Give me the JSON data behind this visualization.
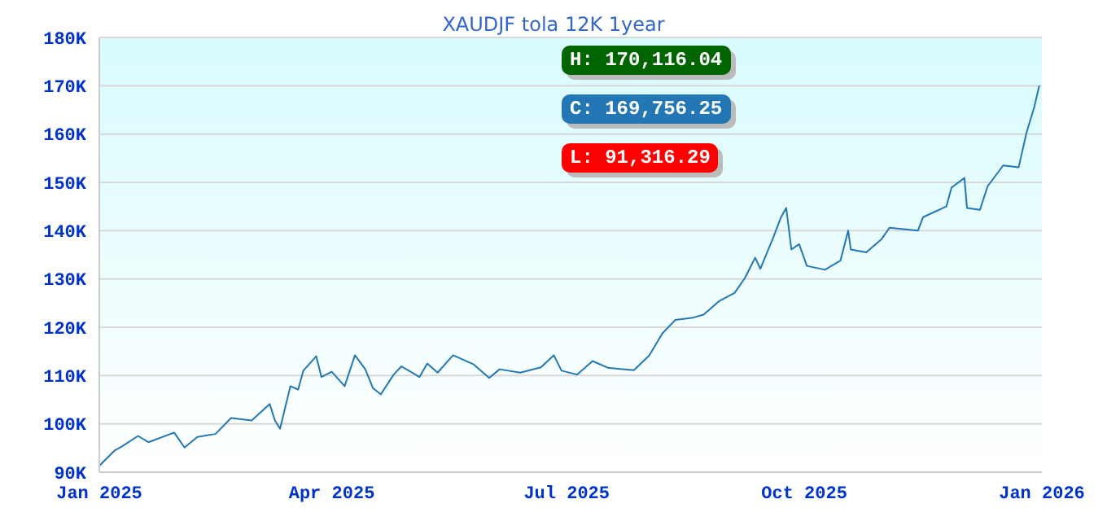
{
  "chart_data": {
    "type": "line",
    "title": "XAUDJF tola 12K 1year",
    "x": [
      "2025-01-01",
      "2025-01-07",
      "2025-01-10",
      "2025-01-16",
      "2025-01-20",
      "2025-01-30",
      "2025-02-03",
      "2025-02-08",
      "2025-02-15",
      "2025-02-21",
      "2025-03-01",
      "2025-03-08",
      "2025-03-10",
      "2025-03-12",
      "2025-03-16",
      "2025-03-19",
      "2025-03-21",
      "2025-03-26",
      "2025-03-28",
      "2025-04-01",
      "2025-04-06",
      "2025-04-10",
      "2025-04-14",
      "2025-04-17",
      "2025-04-20",
      "2025-04-25",
      "2025-04-28",
      "2025-05-05",
      "2025-05-08",
      "2025-05-12",
      "2025-05-18",
      "2025-05-26",
      "2025-06-01",
      "2025-06-05",
      "2025-06-13",
      "2025-06-21",
      "2025-06-26",
      "2025-06-29",
      "2025-07-05",
      "2025-07-11",
      "2025-07-17",
      "2025-07-27",
      "2025-08-02",
      "2025-08-07",
      "2025-08-12",
      "2025-08-19",
      "2025-08-23",
      "2025-08-29",
      "2025-09-04",
      "2025-09-08",
      "2025-09-12",
      "2025-09-14",
      "2025-09-19",
      "2025-09-22",
      "2025-09-24",
      "2025-09-26",
      "2025-09-29",
      "2025-10-02",
      "2025-10-09",
      "2025-10-15",
      "2025-10-18",
      "2025-10-19",
      "2025-10-25",
      "2025-10-31",
      "2025-11-03",
      "2025-11-14",
      "2025-11-16",
      "2025-11-25",
      "2025-11-27",
      "2025-12-02",
      "2025-12-03",
      "2025-12-08",
      "2025-12-11",
      "2025-12-17",
      "2025-12-23",
      "2025-12-26",
      "2025-12-29",
      "2025-12-31"
    ],
    "series": [
      {
        "color": "#2277b4",
        "values": [
          91300,
          94500,
          95400,
          97500,
          96200,
          98200,
          95100,
          97300,
          97900,
          101200,
          100700,
          104100,
          100700,
          99000,
          107800,
          107100,
          111000,
          114000,
          109700,
          110800,
          107800,
          114200,
          111300,
          107400,
          106100,
          110200,
          111900,
          109700,
          112500,
          110600,
          114200,
          112300,
          109500,
          111300,
          110600,
          111700,
          114200,
          111000,
          110200,
          113000,
          111600,
          111100,
          114200,
          118700,
          121500,
          122000,
          122600,
          125400,
          127100,
          130200,
          134400,
          132100,
          138600,
          142800,
          144700,
          136100,
          137200,
          132700,
          131900,
          133800,
          140000,
          136100,
          135500,
          138300,
          140600,
          140000,
          142800,
          145000,
          148900,
          150900,
          144700,
          144300,
          149200,
          153500,
          153100,
          160200,
          165500,
          170000
        ]
      }
    ],
    "xlim": [
      "2025-01-01",
      "2026-01-01"
    ],
    "xticks": [
      {
        "value": "2025-01-01",
        "label": "Jan 2025"
      },
      {
        "value": "2025-04-01",
        "label": "Apr 2025"
      },
      {
        "value": "2025-07-01",
        "label": "Jul 2025"
      },
      {
        "value": "2025-10-01",
        "label": "Oct 2025"
      },
      {
        "value": "2026-01-01",
        "label": "Jan 2026"
      }
    ],
    "ylim": [
      90000,
      180000
    ],
    "yticks": [
      {
        "value": 90000,
        "label": "90K"
      },
      {
        "value": 100000,
        "label": "100K"
      },
      {
        "value": 110000,
        "label": "110K"
      },
      {
        "value": 120000,
        "label": "120K"
      },
      {
        "value": 130000,
        "label": "130K"
      },
      {
        "value": 140000,
        "label": "140K"
      },
      {
        "value": 150000,
        "label": "150K"
      },
      {
        "value": 160000,
        "label": "160K"
      },
      {
        "value": 170000,
        "label": "170K"
      },
      {
        "value": 180000,
        "label": "180K"
      }
    ],
    "grid": "y",
    "annotations": [
      "H: 170,116.04",
      "C: 169,756.25",
      "L: 91,316.29"
    ]
  }
}
